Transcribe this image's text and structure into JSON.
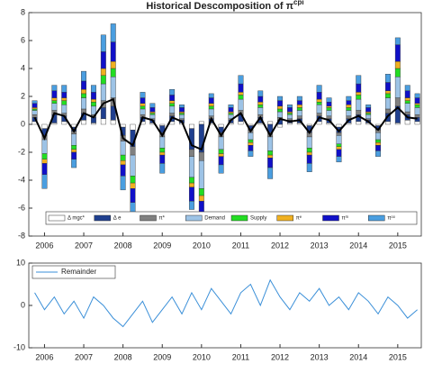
{
  "chart_data": [
    {
      "type": "stacked-bar",
      "title": "Historical Descomposition of π",
      "title_superscript": "cpi",
      "x": [
        2005.75,
        2006,
        2006.25,
        2006.5,
        2006.75,
        2007,
        2007.25,
        2007.5,
        2007.75,
        2008,
        2008.25,
        2008.5,
        2008.75,
        2009,
        2009.25,
        2009.5,
        2009.75,
        2010,
        2010.25,
        2010.5,
        2010.75,
        2011,
        2011.25,
        2011.5,
        2011.75,
        2012,
        2012.25,
        2012.5,
        2012.75,
        2013,
        2013.25,
        2013.5,
        2013.75,
        2014,
        2014.25,
        2014.5,
        2014.75,
        2015,
        2015.25,
        2015.5
      ],
      "series": [
        {
          "name": "Δ mgc*",
          "color": "#ffffff",
          "values": [
            0.2,
            -0.3,
            0.1,
            0.2,
            -0.2,
            0.3,
            0.1,
            0.4,
            0.3,
            -0.2,
            -0.4,
            0.2,
            0.1,
            -0.1,
            0.2,
            0.1,
            -0.3,
            0.2,
            0.1,
            -0.2,
            0.1,
            0.2,
            -0.1,
            0.1,
            0.2,
            -0.2,
            0.1,
            0.1,
            -0.1,
            0.2,
            0.1,
            -0.2,
            0.1,
            0.2,
            0.1,
            -0.1,
            0.2,
            0.1,
            0.3,
            0.2
          ]
        },
        {
          "name": "Δ e",
          "color": "#1f3f8f",
          "values": [
            0.3,
            -0.5,
            0.6,
            0.4,
            -0.3,
            0.5,
            0.4,
            0.8,
            1.0,
            -0.6,
            -1.2,
            0.3,
            0.2,
            -0.5,
            0.4,
            0.2,
            -1.5,
            -2.0,
            0.3,
            -0.4,
            0.2,
            0.5,
            -0.3,
            0.4,
            -0.6,
            0.3,
            0.2,
            0.3,
            -0.5,
            0.4,
            0.3,
            -0.4,
            0.3,
            0.5,
            0.2,
            -0.3,
            0.6,
            1.2,
            0.4,
            0.3
          ]
        },
        {
          "name": "π*",
          "color": "#808080",
          "values": [
            0.2,
            -0.3,
            0.3,
            0.2,
            -0.2,
            0.3,
            0.2,
            0.5,
            0.6,
            -0.4,
            -0.6,
            0.2,
            0.1,
            -0.3,
            0.2,
            0.1,
            -0.5,
            -0.6,
            0.2,
            -0.3,
            0.1,
            0.3,
            -0.2,
            0.2,
            -0.3,
            0.2,
            0.1,
            0.2,
            -0.3,
            0.2,
            0.2,
            -0.2,
            0.2,
            0.3,
            0.1,
            -0.2,
            0.3,
            0.6,
            0.2,
            0.2
          ]
        },
        {
          "name": "Demand",
          "color": "#9dc3e6",
          "values": [
            0.3,
            -1.0,
            0.5,
            0.6,
            -0.8,
            0.8,
            0.6,
            1.2,
            1.5,
            -1.0,
            -1.5,
            0.4,
            0.3,
            -0.8,
            0.5,
            0.3,
            -1.5,
            -2.0,
            0.5,
            -0.9,
            0.3,
            0.8,
            -0.5,
            0.5,
            -1.0,
            0.4,
            0.3,
            0.4,
            -0.8,
            0.6,
            0.4,
            -0.6,
            0.4,
            0.8,
            0.3,
            -0.5,
            0.8,
            1.5,
            0.6,
            0.5
          ]
        },
        {
          "name": "Supply",
          "color": "#22dd22",
          "values": [
            0.1,
            -0.4,
            0.2,
            0.3,
            -0.3,
            0.3,
            0.3,
            0.6,
            0.6,
            -0.4,
            -0.5,
            0.2,
            0.1,
            -0.3,
            0.2,
            0.1,
            -0.4,
            -0.5,
            0.2,
            -0.3,
            0.1,
            0.3,
            -0.2,
            0.2,
            -0.3,
            0.2,
            0.1,
            0.2,
            -0.3,
            0.2,
            0.2,
            -0.2,
            0.2,
            0.3,
            0.1,
            -0.2,
            0.3,
            0.6,
            0.2,
            0.2
          ]
        },
        {
          "name": "πᵉ",
          "color": "#f0b020",
          "values": [
            0.1,
            -0.3,
            0.2,
            0.2,
            -0.2,
            0.3,
            0.2,
            0.5,
            0.5,
            -0.3,
            -0.4,
            0.2,
            0.1,
            -0.2,
            0.2,
            0.1,
            -0.3,
            -0.4,
            0.2,
            -0.2,
            0.1,
            0.2,
            -0.2,
            0.2,
            -0.2,
            0.2,
            0.1,
            0.2,
            -0.2,
            0.2,
            0.1,
            -0.2,
            0.2,
            0.2,
            0.1,
            -0.2,
            0.2,
            0.5,
            0.2,
            0.1
          ]
        },
        {
          "name": "πᵐ",
          "color": "#1010c8",
          "values": [
            0.3,
            -0.8,
            0.5,
            0.4,
            -0.5,
            0.6,
            0.5,
            1.2,
            1.4,
            -0.8,
            -1.0,
            0.4,
            0.3,
            -0.6,
            0.4,
            0.3,
            -1.0,
            -1.0,
            0.4,
            -0.6,
            0.3,
            0.6,
            -0.4,
            0.4,
            -0.7,
            0.4,
            0.3,
            0.3,
            -0.6,
            0.5,
            0.3,
            -0.5,
            0.3,
            0.6,
            0.3,
            -0.4,
            0.6,
            1.2,
            0.5,
            0.4
          ]
        },
        {
          "name": "πᵒᵒ",
          "color": "#4a9ee0",
          "values": [
            0.2,
            -1.0,
            0.4,
            0.5,
            -0.6,
            0.7,
            0.5,
            1.2,
            1.3,
            -1.0,
            -0.8,
            0.4,
            0.3,
            -0.7,
            0.4,
            0.2,
            -0.6,
            -0.5,
            0.3,
            -0.6,
            0.2,
            0.6,
            -0.4,
            0.4,
            -0.8,
            0.3,
            0.2,
            0.3,
            -0.6,
            0.5,
            0.3,
            -0.4,
            0.3,
            0.6,
            0.2,
            -0.4,
            0.6,
            0.5,
            0.4,
            0.3
          ]
        }
      ],
      "line_values": [
        0.5,
        -1,
        0.8,
        0.6,
        -0.5,
        0.8,
        0.5,
        1.5,
        1.8,
        -1,
        -1.5,
        0.5,
        0.3,
        -0.8,
        0.5,
        0.2,
        -1.5,
        -1.8,
        0.4,
        -0.8,
        0.3,
        0.8,
        -0.5,
        0.5,
        -0.8,
        0.4,
        0.2,
        0.3,
        -0.6,
        0.5,
        0.3,
        -0.5,
        0.3,
        0.6,
        0.2,
        -0.4,
        0.6,
        1.2,
        0.5,
        0.4
      ],
      "line_color": "#000000",
      "xlim": [
        2005.6,
        2015.6
      ],
      "xticks": [
        2006,
        2007,
        2008,
        2009,
        2010,
        2011,
        2012,
        2013,
        2014,
        2015
      ],
      "ylim": [
        -8,
        8
      ],
      "yticks": [
        -8,
        -6,
        -4,
        -2,
        0,
        2,
        4,
        6,
        8
      ]
    },
    {
      "type": "line",
      "x": [
        2005.75,
        2006,
        2006.25,
        2006.5,
        2006.75,
        2007,
        2007.25,
        2007.5,
        2007.75,
        2008,
        2008.25,
        2008.5,
        2008.75,
        2009,
        2009.25,
        2009.5,
        2009.75,
        2010,
        2010.25,
        2010.5,
        2010.75,
        2011,
        2011.25,
        2011.5,
        2011.75,
        2012,
        2012.25,
        2012.5,
        2012.75,
        2013,
        2013.25,
        2013.5,
        2013.75,
        2014,
        2014.25,
        2014.5,
        2014.75,
        2015,
        2015.25,
        2015.5
      ],
      "series": [
        {
          "name": "Remainder",
          "color": "#3a8fd8",
          "values": [
            3,
            -1,
            2,
            -2,
            1,
            -3,
            2,
            0,
            -3,
            -5,
            -2,
            1,
            -4,
            -1,
            2,
            -2,
            3,
            -1,
            4,
            1,
            -2,
            3,
            5,
            0,
            6,
            2,
            -1,
            3,
            1,
            4,
            0,
            2,
            -1,
            3,
            1,
            -2,
            2,
            0,
            -3,
            -1
          ]
        }
      ],
      "xlim": [
        2005.6,
        2015.6
      ],
      "xticks": [
        2006,
        2007,
        2008,
        2009,
        2010,
        2011,
        2012,
        2013,
        2014,
        2015
      ],
      "ylim": [
        -10,
        10
      ],
      "yticks": [
        -10,
        0,
        10
      ]
    }
  ]
}
